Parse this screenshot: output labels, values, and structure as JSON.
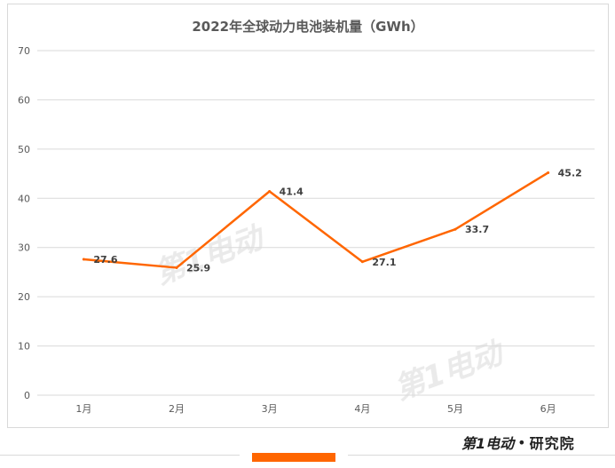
{
  "chart_data": {
    "type": "line",
    "title": "2022年全球动力电池装机量（GWh）",
    "categories": [
      "1月",
      "2月",
      "3月",
      "4月",
      "5月",
      "6月"
    ],
    "values": [
      27.6,
      25.9,
      41.4,
      27.1,
      33.7,
      45.2
    ],
    "ylim": [
      0,
      70
    ],
    "yticks": [
      0,
      10,
      20,
      30,
      40,
      50,
      60,
      70
    ],
    "grid": true,
    "legend": "none",
    "line_color": "#ff6600",
    "grid_color": "#d9d9d9"
  },
  "watermark": {
    "text": "第1电动"
  },
  "footer": {
    "brand_logo_text": "第1电动",
    "brand_separator": "•",
    "brand_name": "研究院",
    "accent_color": "#ff6600"
  }
}
